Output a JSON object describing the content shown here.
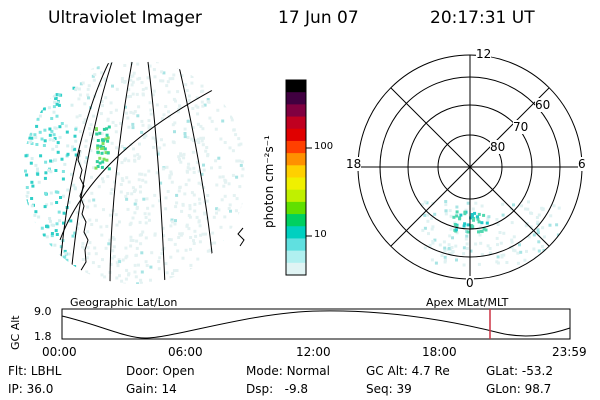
{
  "header": {
    "title": "Ultraviolet Imager",
    "date": "17 Jun 07",
    "time": "20:17:31 UT"
  },
  "left_panel": {
    "caption": "Geographic Lat/Lon"
  },
  "colorbar": {
    "label": "photon cm⁻²s⁻¹",
    "ticks": [
      "100",
      "10"
    ],
    "colors": [
      "#000000",
      "#400040",
      "#800040",
      "#c00020",
      "#e00000",
      "#ff4000",
      "#ff9000",
      "#ffd000",
      "#f0f000",
      "#c0f000",
      "#60e000",
      "#00d060",
      "#00d0c0",
      "#60e0e0",
      "#b0f0f0",
      "#e0f4f4"
    ]
  },
  "right_panel": {
    "caption": "Apex MLat/MLT",
    "mlt_labels": {
      "top": "12",
      "left": "18",
      "right": "6",
      "bottom": "0"
    },
    "mlat_labels": [
      "60",
      "70",
      "80"
    ]
  },
  "orbit_plot": {
    "ylabel": "GC Alt",
    "y_ticks": [
      "9.0",
      "1.8"
    ],
    "x_ticks": [
      "00:00",
      "06:00",
      "12:00",
      "18:00",
      "23:59"
    ],
    "marker_color": "#cc3344"
  },
  "status": {
    "flt_label": "Flt:",
    "flt_value": "LBHL",
    "ip_label": "IP:",
    "ip_value": "36.0",
    "door_label": "Door:",
    "door_value": "Open",
    "gain_label": "Gain:",
    "gain_value": "14",
    "mode_label": "Mode:",
    "mode_value": "Normal",
    "dsp_label": "Dsp:",
    "dsp_value": "-9.8",
    "gcalt_label": "GC Alt:",
    "gcalt_value": "4.7 Re",
    "seq_label": "Seq:",
    "seq_value": "39",
    "glat_label": "GLat:",
    "glat_value": "-53.2",
    "glon_label": "GLon:",
    "glon_value": "98.7"
  }
}
